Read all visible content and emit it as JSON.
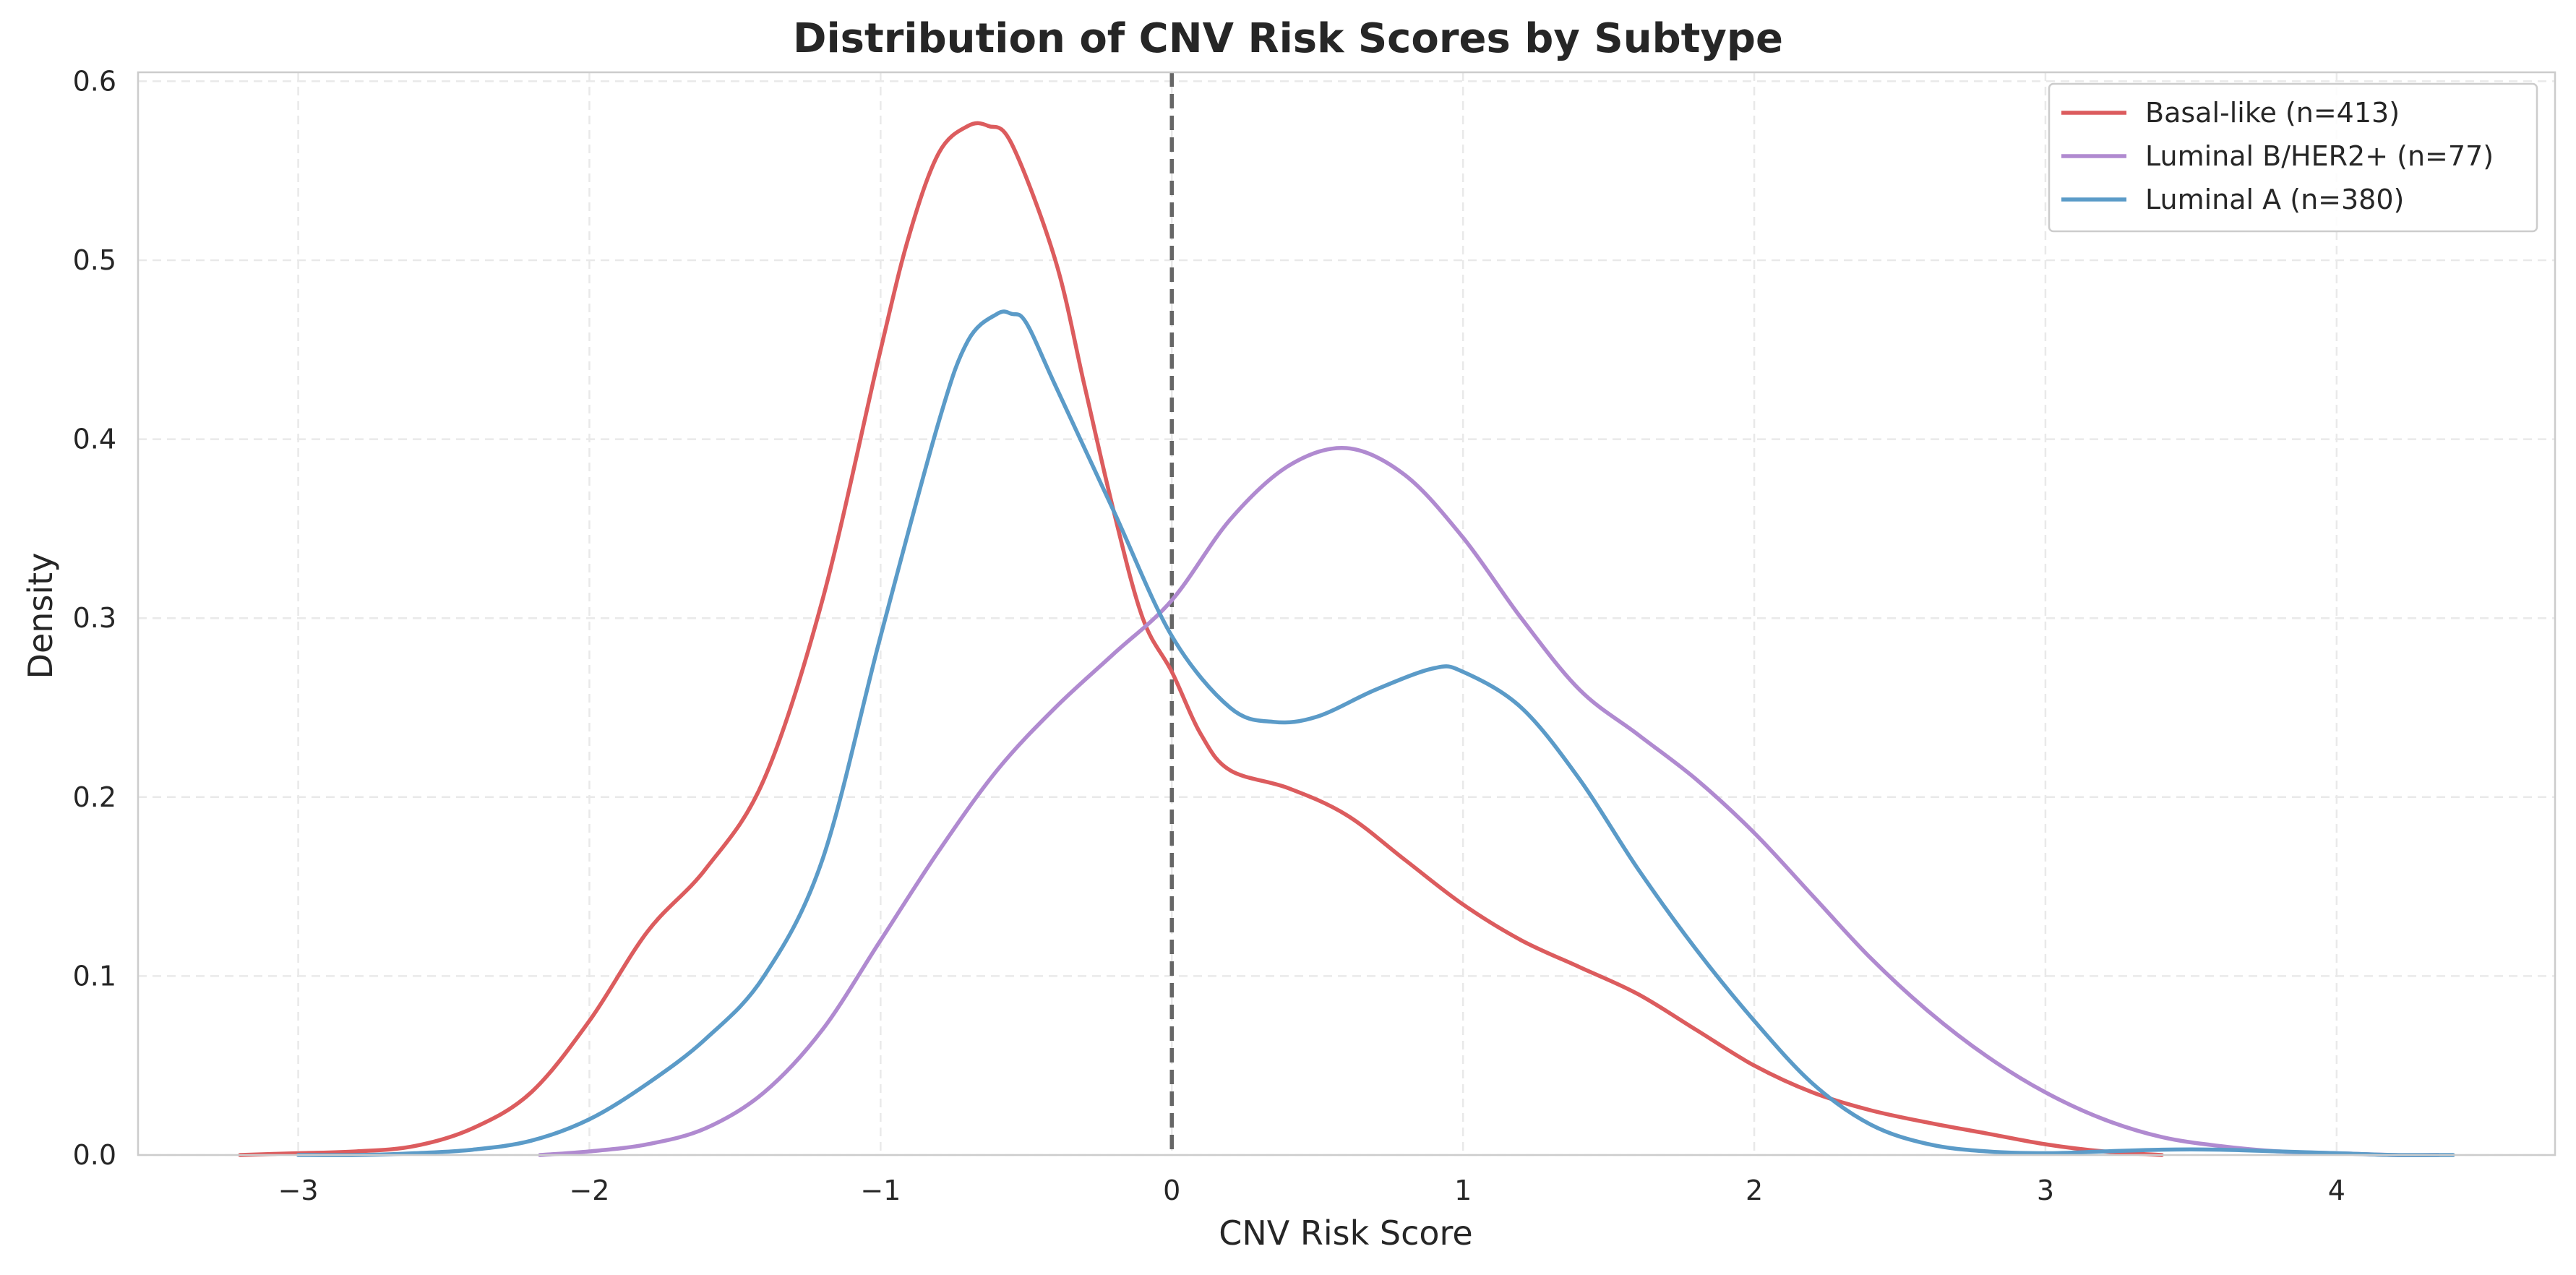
{
  "chart_data": {
    "type": "line",
    "title": "Distribution of CNV Risk Scores by Subtype",
    "xlabel": "CNV Risk Score",
    "ylabel": "Density",
    "xlim": [
      -3.55,
      4.75
    ],
    "ylim": [
      0,
      0.605
    ],
    "xticks": [
      -3,
      -2,
      -1,
      0,
      1,
      2,
      3,
      4
    ],
    "xtick_labels": [
      "−3",
      "−2",
      "−1",
      "0",
      "1",
      "2",
      "3",
      "4"
    ],
    "yticks": [
      0.0,
      0.1,
      0.2,
      0.3,
      0.4,
      0.5,
      0.6
    ],
    "ytick_labels": [
      "0.0",
      "0.1",
      "0.2",
      "0.3",
      "0.4",
      "0.5",
      "0.6"
    ],
    "grid": true,
    "legend_position": "top-right",
    "reference_line": {
      "x": 0,
      "style": "dashed",
      "color": "#666666"
    },
    "series": [
      {
        "name": "Basal-like (n=413)",
        "color": "#dc5c5e",
        "x": [
          -3.2,
          -3.0,
          -2.8,
          -2.6,
          -2.4,
          -2.2,
          -2.0,
          -1.8,
          -1.6,
          -1.4,
          -1.2,
          -1.0,
          -0.9,
          -0.8,
          -0.7,
          -0.63,
          -0.55,
          -0.4,
          -0.3,
          -0.2,
          -0.1,
          0.0,
          0.1,
          0.2,
          0.4,
          0.6,
          0.8,
          1.0,
          1.2,
          1.4,
          1.6,
          1.8,
          2.0,
          2.2,
          2.4,
          2.6,
          2.8,
          3.0,
          3.2,
          3.4
        ],
        "y": [
          0.0,
          0.001,
          0.002,
          0.005,
          0.015,
          0.035,
          0.075,
          0.125,
          0.16,
          0.21,
          0.31,
          0.45,
          0.515,
          0.56,
          0.575,
          0.575,
          0.565,
          0.5,
          0.43,
          0.36,
          0.3,
          0.27,
          0.235,
          0.215,
          0.205,
          0.19,
          0.165,
          0.14,
          0.12,
          0.105,
          0.09,
          0.07,
          0.05,
          0.035,
          0.025,
          0.018,
          0.012,
          0.006,
          0.002,
          0.0
        ]
      },
      {
        "name": "Luminal B/HER2+ (n=77)",
        "color": "#b08ad0",
        "x": [
          -2.17,
          -2.0,
          -1.8,
          -1.6,
          -1.4,
          -1.2,
          -1.0,
          -0.8,
          -0.6,
          -0.4,
          -0.2,
          0.0,
          0.2,
          0.4,
          0.6,
          0.8,
          1.0,
          1.2,
          1.4,
          1.6,
          1.8,
          2.0,
          2.2,
          2.4,
          2.6,
          2.8,
          3.0,
          3.2,
          3.4,
          3.6,
          3.8,
          4.0,
          4.2,
          4.35
        ],
        "y": [
          0.0,
          0.002,
          0.006,
          0.015,
          0.035,
          0.07,
          0.12,
          0.17,
          0.215,
          0.25,
          0.28,
          0.31,
          0.355,
          0.385,
          0.395,
          0.38,
          0.345,
          0.3,
          0.26,
          0.235,
          0.21,
          0.18,
          0.145,
          0.11,
          0.08,
          0.055,
          0.035,
          0.02,
          0.01,
          0.005,
          0.002,
          0.001,
          0.0,
          0.0
        ]
      },
      {
        "name": "Luminal A (n=380)",
        "color": "#5b9bc8",
        "x": [
          -3.0,
          -2.8,
          -2.6,
          -2.4,
          -2.2,
          -2.0,
          -1.8,
          -1.6,
          -1.4,
          -1.2,
          -1.0,
          -0.8,
          -0.7,
          -0.6,
          -0.55,
          -0.5,
          -0.4,
          -0.2,
          0.0,
          0.2,
          0.35,
          0.5,
          0.7,
          0.9,
          1.0,
          1.2,
          1.4,
          1.6,
          1.8,
          2.0,
          2.2,
          2.4,
          2.6,
          2.8,
          3.0,
          3.2,
          3.4,
          3.6,
          3.8,
          4.0,
          4.2,
          4.4
        ],
        "y": [
          0.0,
          0.0,
          0.001,
          0.003,
          0.008,
          0.02,
          0.04,
          0.065,
          0.1,
          0.165,
          0.29,
          0.41,
          0.455,
          0.47,
          0.47,
          0.465,
          0.43,
          0.36,
          0.29,
          0.25,
          0.242,
          0.245,
          0.26,
          0.272,
          0.27,
          0.25,
          0.21,
          0.16,
          0.115,
          0.075,
          0.04,
          0.017,
          0.006,
          0.002,
          0.001,
          0.002,
          0.003,
          0.003,
          0.002,
          0.001,
          0.0,
          0.0
        ]
      }
    ]
  }
}
